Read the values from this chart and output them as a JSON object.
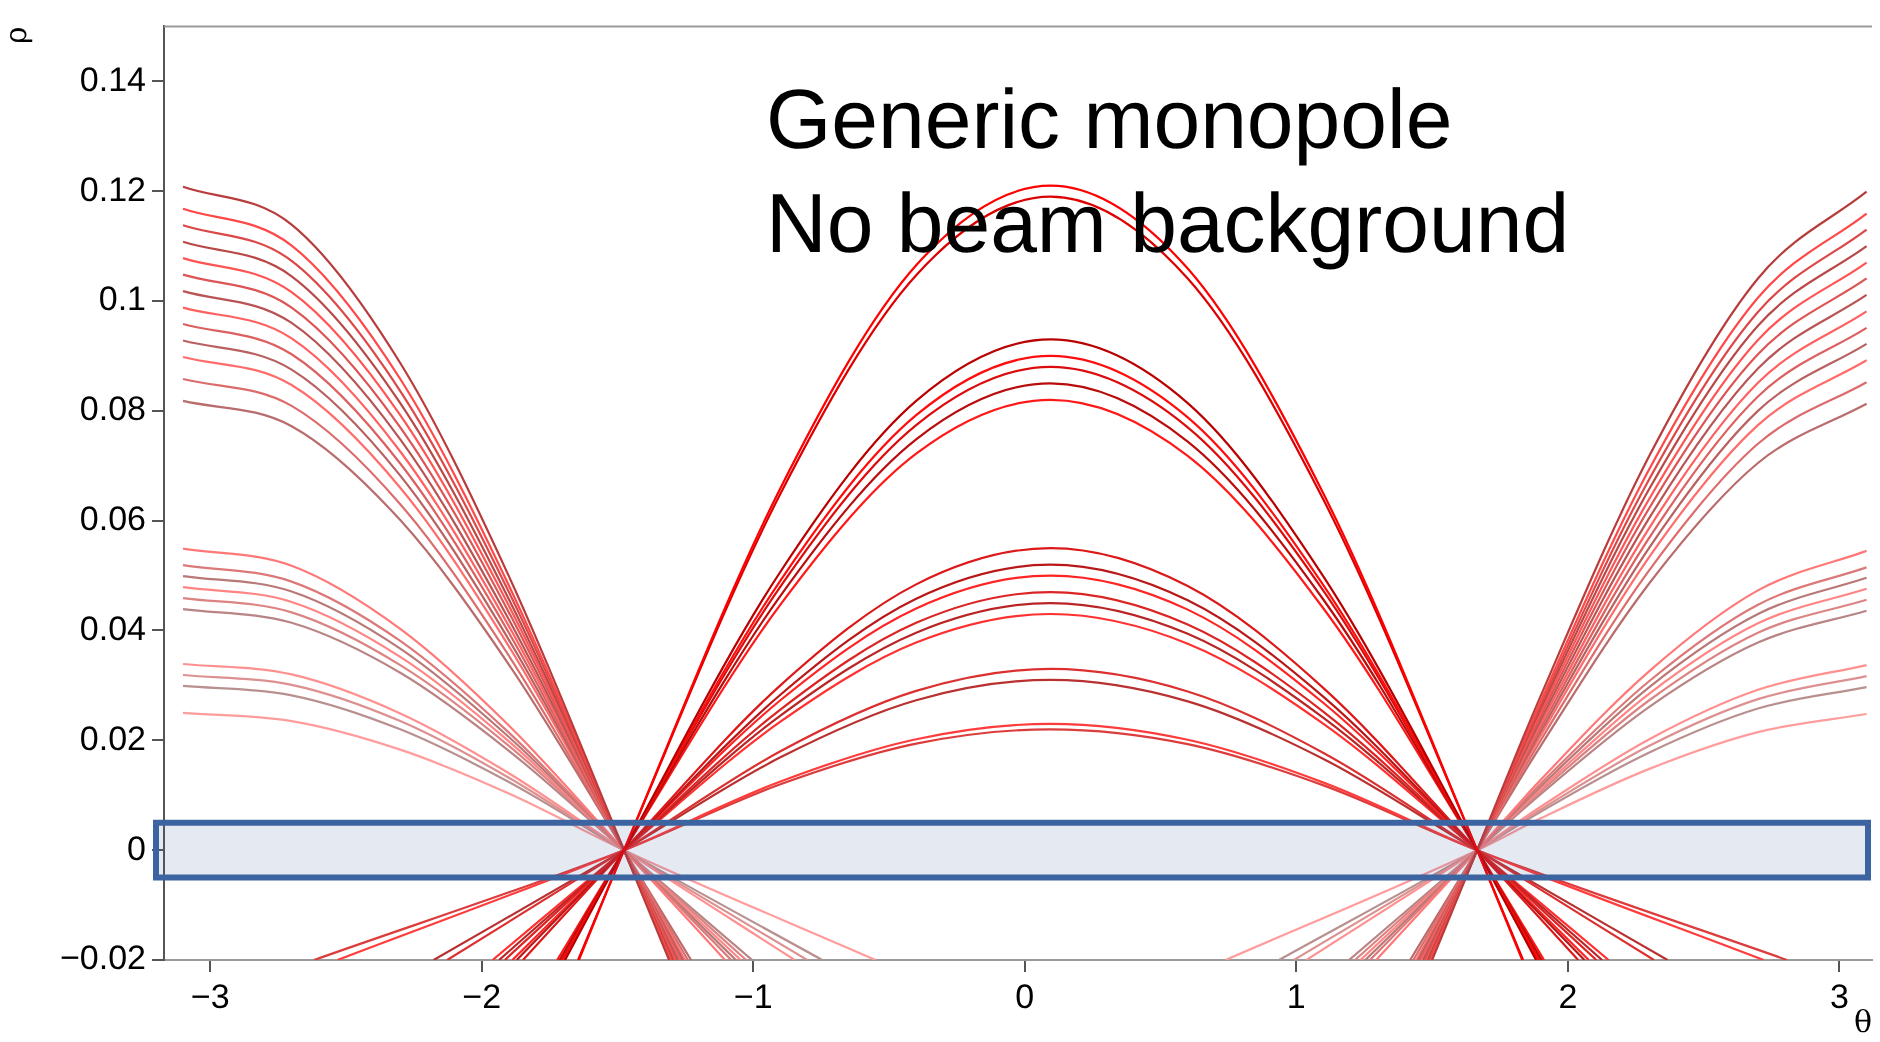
{
  "chart_data": {
    "type": "line",
    "xlabel": "θ",
    "ylabel": "ρ",
    "annotations": [
      "Generic monopole",
      "No beam background"
    ],
    "xlim": [
      -3.17,
      3.12
    ],
    "xticks": [
      -3,
      -2,
      -1,
      0,
      1,
      2,
      3
    ],
    "ylim": [
      -0.02,
      0.15
    ],
    "yticks": [
      -0.02,
      0,
      0.02,
      0.04,
      0.06,
      0.08,
      0.1,
      0.12,
      0.14
    ],
    "grid": false,
    "legend": false,
    "marker": "none",
    "line_style": "solid",
    "bands": [
      {
        "axis": "y",
        "from": -0.005,
        "to": 0.005,
        "color": "#3c64a0"
      }
    ],
    "series": [
      {
        "color": "#ff0000",
        "x": [
          -1.642,
          -1.476,
          -0.9,
          -0.4,
          0.095,
          0.6,
          1.1,
          1.666,
          1.832
        ],
        "values": [
          -0.02,
          0,
          0.0659,
          0.1065,
          0.121,
          0.1059,
          0.0649,
          0,
          -0.02
        ]
      },
      {
        "color": "#dc0000",
        "x": [
          -1.645,
          -1.476,
          -0.9,
          -0.4,
          0.095,
          0.6,
          1.1,
          1.666,
          1.835
        ],
        "values": [
          -0.02,
          0,
          0.0649,
          0.1047,
          0.119,
          0.1041,
          0.0638,
          0,
          -0.02
        ]
      },
      {
        "color": "#b90000",
        "x": [
          -1.693,
          -1.476,
          -0.9,
          -0.4,
          0.095,
          0.6,
          1.1,
          1.666,
          1.883
        ],
        "values": [
          -0.02,
          0,
          0.0507,
          0.0818,
          0.093,
          0.0814,
          0.0498,
          0,
          -0.02
        ]
      },
      {
        "color": "#ff0c0c",
        "x": [
          -1.7,
          -1.476,
          -0.9,
          -0.4,
          0.095,
          0.6,
          1.1,
          1.666,
          1.89
        ],
        "values": [
          -0.02,
          0,
          0.0491,
          0.0792,
          0.09,
          0.0788,
          0.0482,
          0,
          -0.02
        ]
      },
      {
        "color": "#dc0c0c",
        "x": [
          -1.705,
          -1.476,
          -0.9,
          -0.4,
          0.095,
          0.6,
          1.1,
          1.666,
          1.895
        ],
        "values": [
          -0.02,
          0,
          0.048,
          0.0774,
          0.088,
          0.077,
          0.0472,
          0,
          -0.02
        ]
      },
      {
        "color": "#b90c0c",
        "x": [
          -1.713,
          -1.476,
          -0.9,
          -0.4,
          0.095,
          0.6,
          1.1,
          1.666,
          1.903
        ],
        "values": [
          -0.02,
          0,
          0.0463,
          0.0748,
          0.085,
          0.0744,
          0.0456,
          0,
          -0.02
        ]
      },
      {
        "color": "#ff1818",
        "x": [
          -1.722,
          -1.476,
          -0.9,
          -0.4,
          0.095,
          0.6,
          1.1,
          1.666,
          1.912
        ],
        "values": [
          -0.02,
          0,
          0.0447,
          0.0722,
          0.082,
          0.0718,
          0.044,
          0,
          -0.02
        ]
      },
      {
        "color": "#dc1818",
        "x": [
          -1.848,
          -1.476,
          -0.9,
          -0.4,
          0.095,
          0.6,
          1.1,
          1.666,
          2.038
        ],
        "values": [
          -0.02,
          0,
          0.03,
          0.0484,
          0.055,
          0.0481,
          0.0295,
          0,
          -0.02
        ]
      },
      {
        "color": "#b91818",
        "x": [
          -1.871,
          -1.476,
          -0.9,
          -0.4,
          0.095,
          0.6,
          1.1,
          1.666,
          2.061
        ],
        "values": [
          -0.02,
          0,
          0.0283,
          0.0458,
          0.052,
          0.0455,
          0.0279,
          0,
          -0.02
        ]
      },
      {
        "color": "#ff2424",
        "x": [
          -1.887,
          -1.476,
          -0.9,
          -0.4,
          0.095,
          0.6,
          1.1,
          1.666,
          2.077
        ],
        "values": [
          -0.02,
          0,
          0.0273,
          0.044,
          0.05,
          0.0438,
          0.0268,
          0,
          -0.02
        ]
      },
      {
        "color": "#dc2424",
        "x": [
          -1.915,
          -1.476,
          -0.9,
          -0.4,
          0.095,
          0.6,
          1.1,
          1.666,
          2.105
        ],
        "values": [
          -0.02,
          0,
          0.0256,
          0.0414,
          0.047,
          0.0411,
          0.0252,
          0,
          -0.02
        ]
      },
      {
        "color": "#b92424",
        "x": [
          -1.936,
          -1.476,
          -0.9,
          -0.4,
          0.095,
          0.6,
          1.1,
          1.666,
          2.126
        ],
        "values": [
          -0.02,
          0,
          0.0245,
          0.0396,
          0.045,
          0.0394,
          0.0241,
          0,
          -0.02
        ]
      },
      {
        "color": "#ff3030",
        "x": [
          -1.96,
          -1.476,
          -0.9,
          -0.4,
          0.095,
          0.6,
          1.1,
          1.666,
          2.15
        ],
        "values": [
          -0.02,
          0,
          0.0234,
          0.0378,
          0.043,
          0.0376,
          0.023,
          0,
          -0.02
        ]
      },
      {
        "color": "#dc3030",
        "x": [
          -2.127,
          -1.476,
          -0.9,
          -0.4,
          0.095,
          0.6,
          1.1,
          1.666,
          2.317
        ],
        "values": [
          -0.02,
          0,
          0.018,
          0.029,
          0.033,
          0.0289,
          0.0177,
          0,
          -0.02
        ]
      },
      {
        "color": "#b93030",
        "x": [
          -2.177,
          -1.476,
          -0.9,
          -0.4,
          0.095,
          0.6,
          1.1,
          1.666,
          2.367
        ],
        "values": [
          -0.02,
          0,
          0.0169,
          0.0273,
          0.031,
          0.0271,
          0.0166,
          0,
          -0.02
        ]
      },
      {
        "color": "#ff3c3c",
        "x": [
          -2.531,
          -1.476,
          -0.9,
          -0.4,
          0.095,
          0.6,
          1.1,
          1.666,
          2.721
        ],
        "values": [
          -0.02,
          0,
          0.0125,
          0.0202,
          0.023,
          0.0201,
          0.0123,
          0,
          -0.02
        ]
      },
      {
        "color": "#dc3c3c",
        "x": [
          -2.617,
          -1.476,
          -0.9,
          -0.4,
          0.095,
          0.6,
          1.1,
          1.666,
          2.807
        ],
        "values": [
          -0.02,
          0,
          0.012,
          0.0194,
          0.022,
          0.0193,
          0.0118,
          0,
          -0.02
        ]
      },
      {
        "color": "#b93c3c",
        "x": [
          -3.1,
          -2.7,
          -2.3,
          -1.9,
          -1.476,
          -1.31,
          0.095,
          1.5,
          1.666,
          1.9,
          2.3,
          2.7,
          3.1
        ],
        "values": [
          0.1208,
          0.1139,
          0.0887,
          0.0499,
          0,
          -0.02,
          null,
          -0.02,
          0,
          0.0281,
          0.0718,
          0.1041,
          0.1199
        ]
      },
      {
        "color": "#ff4848",
        "x": [
          -3.1,
          -2.7,
          -2.3,
          -1.9,
          -1.476,
          -1.304,
          0.095,
          1.494,
          1.666,
          1.9,
          2.3,
          2.7,
          3.1
        ],
        "values": [
          0.1168,
          0.1101,
          0.0858,
          0.0482,
          0,
          -0.02,
          null,
          -0.02,
          0,
          0.0271,
          0.0694,
          0.1006,
          0.1159
        ]
      },
      {
        "color": "#dc4848",
        "x": [
          -3.1,
          -2.7,
          -2.3,
          -1.9,
          -1.476,
          -1.3,
          0.095,
          1.49,
          1.666,
          1.9,
          2.3,
          2.7,
          3.1
        ],
        "values": [
          0.1138,
          0.1073,
          0.0836,
          0.047,
          0,
          -0.02,
          null,
          -0.02,
          0,
          0.0264,
          0.0676,
          0.098,
          0.113
        ]
      },
      {
        "color": "#b94848",
        "x": [
          -3.1,
          -2.7,
          -2.3,
          -1.9,
          -1.476,
          -1.295,
          0.095,
          1.485,
          1.666,
          1.9,
          2.3,
          2.7,
          3.1
        ],
        "values": [
          0.1108,
          0.1045,
          0.0814,
          0.0457,
          0,
          -0.02,
          null,
          -0.02,
          0,
          0.0258,
          0.0658,
          0.0955,
          0.11
        ]
      },
      {
        "color": "#ff5454",
        "x": [
          -3.1,
          -2.7,
          -2.3,
          -1.9,
          -1.476,
          -1.29,
          0.095,
          1.48,
          1.666,
          1.9,
          2.3,
          2.7,
          3.1
        ],
        "values": [
          0.1078,
          0.1016,
          0.0792,
          0.0445,
          0,
          -0.02,
          null,
          -0.02,
          0,
          0.0251,
          0.064,
          0.0929,
          0.107
        ]
      },
      {
        "color": "#dc5454",
        "x": [
          -3.1,
          -2.7,
          -2.3,
          -1.9,
          -1.476,
          -1.284,
          0.095,
          1.474,
          1.666,
          1.9,
          2.3,
          2.7,
          3.1
        ],
        "values": [
          0.1048,
          0.0988,
          0.077,
          0.0433,
          0,
          -0.02,
          null,
          -0.02,
          0,
          0.0244,
          0.0623,
          0.0903,
          0.1041
        ]
      },
      {
        "color": "#b95454",
        "x": [
          -3.1,
          -2.7,
          -2.3,
          -1.9,
          -1.476,
          -1.278,
          0.095,
          1.468,
          1.666,
          1.9,
          2.3,
          2.7,
          3.1
        ],
        "values": [
          0.1018,
          0.096,
          0.0748,
          0.042,
          0,
          -0.02,
          null,
          -0.02,
          0,
          0.0237,
          0.0605,
          0.0877,
          0.1011
        ]
      },
      {
        "color": "#ff6060",
        "x": [
          -3.1,
          -2.7,
          -2.3,
          -1.9,
          -1.476,
          -1.272,
          0.095,
          1.462,
          1.666,
          1.9,
          2.3,
          2.7,
          3.1
        ],
        "values": [
          0.0988,
          0.0932,
          0.0726,
          0.0408,
          0,
          -0.02,
          null,
          -0.02,
          0,
          0.023,
          0.0587,
          0.0851,
          0.0981
        ]
      },
      {
        "color": "#dc6060",
        "x": [
          -3.1,
          -2.7,
          -2.3,
          -1.9,
          -1.476,
          -1.266,
          0.095,
          1.456,
          1.666,
          1.9,
          2.3,
          2.7,
          3.1
        ],
        "values": [
          0.0958,
          0.0903,
          0.0704,
          0.0396,
          0,
          -0.02,
          null,
          -0.02,
          0,
          0.0223,
          0.0569,
          0.0826,
          0.0951
        ]
      },
      {
        "color": "#b96060",
        "x": [
          -3.1,
          -2.7,
          -2.3,
          -1.9,
          -1.476,
          -1.259,
          0.095,
          1.449,
          1.666,
          1.9,
          2.3,
          2.7,
          3.1
        ],
        "values": [
          0.0928,
          0.0875,
          0.0682,
          0.0383,
          0,
          -0.02,
          null,
          -0.02,
          0,
          0.0216,
          0.0551,
          0.08,
          0.0922
        ]
      },
      {
        "color": "#ff6c6c",
        "x": [
          -3.1,
          -2.7,
          -2.3,
          -1.9,
          -1.476,
          -1.252,
          0.095,
          1.442,
          1.666,
          1.9,
          2.3,
          2.7,
          3.1
        ],
        "values": [
          0.0898,
          0.0847,
          0.066,
          0.0371,
          0,
          -0.02,
          null,
          -0.02,
          0,
          0.0209,
          0.0534,
          0.0774,
          0.0892
        ]
      },
      {
        "color": "#dc6c6c",
        "x": [
          -3.1,
          -2.7,
          -2.3,
          -1.9,
          -1.476,
          -1.241,
          0.095,
          1.431,
          1.666,
          1.9,
          2.3,
          2.7,
          3.1
        ],
        "values": [
          0.0858,
          0.0809,
          0.063,
          0.0354,
          0,
          -0.02,
          null,
          -0.02,
          0,
          0.02,
          0.051,
          0.074,
          0.0852
        ]
      },
      {
        "color": "#b96c6c",
        "x": [
          -3.1,
          -2.7,
          -2.3,
          -1.9,
          -1.476,
          -1.229,
          0.095,
          1.419,
          1.666,
          1.9,
          2.3,
          2.7,
          3.1
        ],
        "values": [
          0.0818,
          0.0772,
          0.0601,
          0.0338,
          0,
          -0.02,
          null,
          -0.02,
          0,
          0.019,
          0.0486,
          0.0705,
          0.0813
        ]
      },
      {
        "color": "#ff7878",
        "x": [
          -3.1,
          -2.7,
          -2.3,
          -1.9,
          -1.476,
          -1.104,
          0.095,
          1.294,
          1.666,
          1.9,
          2.3,
          2.7,
          3.1
        ],
        "values": [
          0.0549,
          0.0518,
          0.0403,
          0.0227,
          0,
          -0.02,
          null,
          -0.02,
          0,
          0.0128,
          0.0326,
          0.0473,
          0.0545
        ]
      },
      {
        "color": "#dc7878",
        "x": [
          -3.1,
          -2.7,
          -2.3,
          -1.9,
          -1.476,
          -1.081,
          0.095,
          1.271,
          1.666,
          1.9,
          2.3,
          2.7,
          3.1
        ],
        "values": [
          0.0519,
          0.0489,
          0.0381,
          0.0214,
          0,
          -0.02,
          null,
          -0.02,
          0,
          0.0121,
          0.0308,
          0.0447,
          0.0515
        ]
      },
      {
        "color": "#b97878",
        "x": [
          -3.1,
          -2.7,
          -2.3,
          -1.9,
          -1.476,
          -1.064,
          0.095,
          1.254,
          1.666,
          1.9,
          2.3,
          2.7,
          3.1
        ],
        "values": [
          0.0499,
          0.0471,
          0.0367,
          0.0206,
          0,
          -0.02,
          null,
          -0.02,
          0,
          0.0116,
          0.0297,
          0.043,
          0.0496
        ]
      },
      {
        "color": "#ff8484",
        "x": [
          -3.1,
          -2.7,
          -2.3,
          -1.9,
          -1.476,
          -1.046,
          0.095,
          1.236,
          1.666,
          1.9,
          2.3,
          2.7,
          3.1
        ],
        "values": [
          0.0479,
          0.0452,
          0.0352,
          0.0198,
          0,
          -0.02,
          null,
          -0.02,
          0,
          0.0111,
          0.0285,
          0.0413,
          0.0476
        ]
      },
      {
        "color": "#dc8484",
        "x": [
          -3.1,
          -2.7,
          -2.3,
          -1.9,
          -1.476,
          -1.026,
          0.095,
          1.216,
          1.666,
          1.9,
          2.3,
          2.7,
          3.1
        ],
        "values": [
          0.0459,
          0.0433,
          0.0337,
          0.019,
          0,
          -0.02,
          null,
          -0.02,
          0,
          0.0107,
          0.0273,
          0.0396,
          0.0456
        ]
      },
      {
        "color": "#b98484",
        "x": [
          -3.1,
          -2.7,
          -2.3,
          -1.9,
          -1.476,
          -1.004,
          0.095,
          1.194,
          1.666,
          1.9,
          2.3,
          2.7,
          3.1
        ],
        "values": [
          0.0439,
          0.0414,
          0.0323,
          0.0181,
          0,
          -0.02,
          null,
          -0.02,
          0,
          0.0102,
          0.0261,
          0.0378,
          0.0436
        ]
      },
      {
        "color": "#ff9090",
        "x": [
          -3.1,
          -2.7,
          -2.3,
          -1.9,
          -1.476,
          -0.847,
          0.095,
          1.037,
          1.666,
          1.9,
          2.3,
          2.7,
          3.1
        ],
        "values": [
          0.0339,
          0.032,
          0.0249,
          0.014,
          0,
          -0.02,
          null,
          -0.02,
          0,
          0.0079,
          0.0202,
          0.0292,
          0.0337
        ]
      },
      {
        "color": "#dc9090",
        "x": [
          -3.1,
          -2.7,
          -2.3,
          -1.9,
          -1.476,
          -0.801,
          0.095,
          0.991,
          1.666,
          1.9,
          2.3,
          2.7,
          3.1
        ],
        "values": [
          0.0319,
          0.0301,
          0.0235,
          0.0132,
          0,
          -0.02,
          null,
          -0.02,
          0,
          0.0074,
          0.019,
          0.0275,
          0.0317
        ]
      },
      {
        "color": "#b99090",
        "x": [
          -3.1,
          -2.7,
          -2.3,
          -1.9,
          -1.476,
          -0.746,
          0.095,
          0.936,
          1.666,
          1.9,
          2.3,
          2.7,
          3.1
        ],
        "values": [
          0.0299,
          0.0282,
          0.022,
          0.0124,
          0,
          -0.02,
          null,
          -0.02,
          0,
          0.007,
          0.0178,
          0.0258,
          0.0297
        ]
      },
      {
        "color": "#ff9c9c",
        "x": [
          -3.1,
          -2.7,
          -2.3,
          -1.9,
          -1.476,
          -0.549,
          0.095,
          0.739,
          1.666,
          1.9,
          2.3,
          2.7,
          3.1
        ],
        "values": [
          0.025,
          0.0235,
          0.0183,
          0.0103,
          0,
          -0.02,
          null,
          -0.02,
          0,
          0.0058,
          0.0148,
          0.0215,
          0.0248
        ]
      }
    ]
  }
}
